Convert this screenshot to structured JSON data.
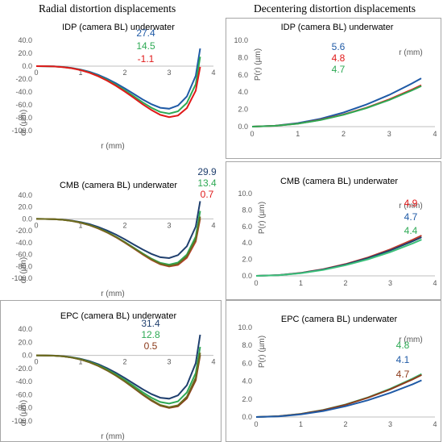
{
  "headings": {
    "left": "Radial distortion displacements",
    "right": "Decentering distortion displacements"
  },
  "chart_data": [
    {
      "id": "radial-idp",
      "type": "line",
      "title": "IDP (camera BL)  underwater",
      "xlabel": "r (mm)",
      "ylabel": "dr (µm)",
      "xlim": [
        0,
        4
      ],
      "ylim": [
        -100,
        40
      ],
      "xticks": [
        0,
        1,
        2,
        3,
        4
      ],
      "yticks": [
        "40.0",
        "20.0",
        "0.0",
        "-20.0",
        "-40.0",
        "-60.0",
        "-80.0",
        "-100.0"
      ],
      "ytick_values": [
        40,
        20,
        0,
        -20,
        -40,
        -60,
        -80,
        -100
      ],
      "grid": false,
      "x": [
        0,
        0.2,
        0.4,
        0.6,
        0.8,
        1.0,
        1.2,
        1.4,
        1.6,
        1.8,
        2.0,
        2.2,
        2.4,
        2.6,
        2.8,
        3.0,
        3.2,
        3.4,
        3.6,
        3.7
      ],
      "series": [
        {
          "color": "#1f5aa6",
          "y": [
            0,
            -0.1,
            -0.4,
            -1.2,
            -2.8,
            -5.2,
            -8.8,
            -13.5,
            -19.5,
            -26.5,
            -34.5,
            -43,
            -51.5,
            -59,
            -64.5,
            -66,
            -61,
            -47,
            -15,
            27.4
          ]
        },
        {
          "color": "#2eaa55",
          "y": [
            0,
            -0.1,
            -0.5,
            -1.4,
            -3.1,
            -5.8,
            -9.8,
            -15,
            -21.5,
            -29,
            -37.5,
            -46.5,
            -56,
            -64.5,
            -71,
            -73.5,
            -70,
            -57,
            -28,
            14.5
          ]
        },
        {
          "color": "#e01919",
          "y": [
            0,
            -0.1,
            -0.5,
            -1.5,
            -3.3,
            -6.1,
            -10.3,
            -15.8,
            -22.5,
            -30.5,
            -39.5,
            -49,
            -59,
            -68,
            -75.5,
            -79,
            -76.5,
            -65,
            -38,
            -1.1
          ]
        }
      ],
      "end_labels": [
        {
          "text": "27.4",
          "color": "#1f5aa6"
        },
        {
          "text": "14.5",
          "color": "#2eaa55"
        },
        {
          "text": "-1.1",
          "color": "#e01919"
        }
      ]
    },
    {
      "id": "decentering-idp",
      "type": "line",
      "title": "IDP (camera BL)  underwater",
      "xlabel": "r (mm)",
      "ylabel": "P(r) (µm)",
      "xlim": [
        0,
        4
      ],
      "ylim": [
        0,
        10
      ],
      "xticks": [
        0,
        1,
        2,
        3,
        4
      ],
      "yticks": [
        "10.0",
        "8.0",
        "6.0",
        "4.0",
        "2.0",
        "0.0"
      ],
      "ytick_values": [
        10,
        8,
        6,
        4,
        2,
        0
      ],
      "grid": false,
      "x": [
        0,
        0.5,
        1.0,
        1.5,
        2.0,
        2.5,
        3.0,
        3.5,
        3.7
      ],
      "series": [
        {
          "color": "#1f5aa6",
          "y": [
            0,
            0.1,
            0.41,
            0.92,
            1.64,
            2.56,
            3.68,
            5.01,
            5.6
          ]
        },
        {
          "color": "#e01919",
          "y": [
            0,
            0.09,
            0.35,
            0.79,
            1.4,
            2.19,
            3.16,
            4.3,
            4.8
          ]
        },
        {
          "color": "#2eaa55",
          "y": [
            0,
            0.09,
            0.34,
            0.77,
            1.37,
            2.15,
            3.09,
            4.21,
            4.7
          ]
        }
      ],
      "end_labels": [
        {
          "text": "5.6",
          "color": "#1f5aa6"
        },
        {
          "text": "4.8",
          "color": "#e01919"
        },
        {
          "text": "4.7",
          "color": "#2eaa55"
        }
      ]
    },
    {
      "id": "radial-cmb",
      "type": "line",
      "title": "CMB (camera BL)  underwater",
      "xlabel": "r (mm)",
      "ylabel": "dr (µm)",
      "xlim": [
        0,
        4
      ],
      "ylim": [
        -100,
        40
      ],
      "xticks": [
        0,
        1,
        2,
        3,
        4
      ],
      "yticks": [
        "40.0",
        "20.0",
        "0.0",
        "-20.0",
        "-40.0",
        "-60.0",
        "-80.0",
        "-100.0"
      ],
      "ytick_values": [
        40,
        20,
        0,
        -20,
        -40,
        -60,
        -80,
        -100
      ],
      "grid": false,
      "x": [
        0,
        0.2,
        0.4,
        0.6,
        0.8,
        1.0,
        1.2,
        1.4,
        1.6,
        1.8,
        2.0,
        2.2,
        2.4,
        2.6,
        2.8,
        3.0,
        3.2,
        3.4,
        3.6,
        3.7
      ],
      "series": [
        {
          "color": "#1f3f6e",
          "y": [
            0,
            -0.1,
            -0.4,
            -1.2,
            -2.8,
            -5.2,
            -8.8,
            -13.5,
            -19.5,
            -26.5,
            -34.5,
            -43,
            -51.5,
            -59,
            -64.5,
            -66,
            -61,
            -46,
            -13,
            29.9
          ]
        },
        {
          "color": "#2eaa55",
          "y": [
            0,
            -0.1,
            -0.5,
            -1.5,
            -3.3,
            -6.1,
            -10.2,
            -15.6,
            -22.3,
            -30.2,
            -39,
            -48.5,
            -58,
            -67,
            -74,
            -77,
            -73.5,
            -60,
            -30,
            13.4
          ]
        },
        {
          "color": "#c0392b",
          "y": [
            0,
            -0.1,
            -0.5,
            -1.5,
            -3.4,
            -6.3,
            -10.6,
            -16.1,
            -23,
            -31,
            -40,
            -49.8,
            -59.8,
            -69,
            -76.5,
            -80,
            -77.5,
            -65.5,
            -38,
            0.7
          ]
        },
        {
          "color": "#6b6b1e",
          "y": [
            0,
            -0.1,
            -0.5,
            -1.5,
            -3.3,
            -6.2,
            -10.4,
            -15.9,
            -22.7,
            -30.6,
            -39.5,
            -49.2,
            -59,
            -68,
            -75.5,
            -79,
            -76,
            -63,
            -35,
            4
          ]
        }
      ],
      "end_labels": [
        {
          "text": "29.9",
          "color": "#1f3f6e"
        },
        {
          "text": "13.4",
          "color": "#2eaa55"
        },
        {
          "text": "0.7",
          "color": "#e01919"
        }
      ]
    },
    {
      "id": "decentering-cmb",
      "type": "line",
      "title": "CMB (camera BL)  underwater",
      "xlabel": "r (mm)",
      "ylabel": "P(r) (µm)",
      "xlim": [
        0,
        4
      ],
      "ylim": [
        0,
        10
      ],
      "xticks": [
        0,
        1,
        2,
        3,
        4
      ],
      "yticks": [
        "10.0",
        "8.0",
        "6.0",
        "4.0",
        "2.0",
        "0.0"
      ],
      "ytick_values": [
        10,
        8,
        6,
        4,
        2,
        0
      ],
      "grid": false,
      "x": [
        0,
        0.5,
        1.0,
        1.5,
        2.0,
        2.5,
        3.0,
        3.5,
        3.7
      ],
      "series": [
        {
          "color": "#c0392b",
          "y": [
            0,
            0.09,
            0.36,
            0.81,
            1.43,
            2.24,
            3.22,
            4.38,
            4.9
          ]
        },
        {
          "color": "#1f3f6e",
          "y": [
            0,
            0.09,
            0.34,
            0.77,
            1.37,
            2.15,
            3.09,
            4.21,
            4.7
          ]
        },
        {
          "color": "#3cc07a",
          "y": [
            0,
            0.08,
            0.32,
            0.72,
            1.29,
            2.01,
            2.89,
            3.94,
            4.4
          ]
        }
      ],
      "end_labels": [
        {
          "text": "4.9",
          "color": "#e01919"
        },
        {
          "text": "4.7",
          "color": "#1f5aa6"
        },
        {
          "text": "4.4",
          "color": "#2eaa55"
        }
      ]
    },
    {
      "id": "radial-epc",
      "type": "line",
      "title": "EPC (camera BL)  underwater",
      "xlabel": "r (mm)",
      "ylabel": "dr (µm)",
      "xlim": [
        0,
        4
      ],
      "ylim": [
        -100,
        40
      ],
      "xticks": [
        0,
        1,
        2,
        3,
        4
      ],
      "yticks": [
        "40.0",
        "20.0",
        "0.0",
        "-20.0",
        "-40.0",
        "-60.0",
        "-80.0",
        "-100.0"
      ],
      "ytick_values": [
        40,
        20,
        0,
        -20,
        -40,
        -60,
        -80,
        -100
      ],
      "grid": false,
      "x": [
        0,
        0.2,
        0.4,
        0.6,
        0.8,
        1.0,
        1.2,
        1.4,
        1.6,
        1.8,
        2.0,
        2.2,
        2.4,
        2.6,
        2.8,
        3.0,
        3.2,
        3.4,
        3.6,
        3.7
      ],
      "series": [
        {
          "color": "#1f3f6e",
          "y": [
            0,
            -0.1,
            -0.4,
            -1.2,
            -2.8,
            -5.2,
            -8.8,
            -13.5,
            -19.5,
            -26.5,
            -34.5,
            -43,
            -51.5,
            -59,
            -64.5,
            -66,
            -61,
            -45.5,
            -12,
            31.4
          ]
        },
        {
          "color": "#2eaa55",
          "y": [
            0,
            -0.1,
            -0.5,
            -1.4,
            -3.1,
            -5.8,
            -9.8,
            -15,
            -21.5,
            -29,
            -37.5,
            -46.5,
            -56,
            -64.5,
            -71,
            -73.5,
            -70,
            -56.5,
            -27,
            12.8
          ]
        },
        {
          "color": "#8b3a1a",
          "y": [
            0,
            -0.1,
            -0.5,
            -1.5,
            -3.4,
            -6.3,
            -10.6,
            -16.1,
            -23,
            -31,
            -40,
            -49.8,
            -59.8,
            -69,
            -76.5,
            -80,
            -77.5,
            -65.5,
            -38,
            0.5
          ]
        },
        {
          "color": "#6b6b1e",
          "y": [
            0,
            -0.1,
            -0.5,
            -1.5,
            -3.3,
            -6.2,
            -10.4,
            -15.9,
            -22.7,
            -30.6,
            -39.5,
            -49.2,
            -59,
            -68,
            -75.5,
            -79,
            -76,
            -63,
            -34,
            4
          ]
        }
      ],
      "end_labels": [
        {
          "text": "31.4",
          "color": "#1f3f6e"
        },
        {
          "text": "12.8",
          "color": "#2eaa55"
        },
        {
          "text": "0.5",
          "color": "#8b3a1a"
        }
      ]
    },
    {
      "id": "decentering-epc",
      "type": "line",
      "title": "EPC (camera BL)  underwater",
      "xlabel": "r (mm)",
      "ylabel": "P(r) (µm)",
      "xlim": [
        0,
        4
      ],
      "ylim": [
        0,
        10
      ],
      "xticks": [
        0,
        1,
        2,
        3,
        4
      ],
      "yticks": [
        "10.0",
        "8.0",
        "6.0",
        "4.0",
        "2.0",
        "0.0"
      ],
      "ytick_values": [
        10,
        8,
        6,
        4,
        2,
        0
      ],
      "grid": false,
      "x": [
        0,
        0.5,
        1.0,
        1.5,
        2.0,
        2.5,
        3.0,
        3.5,
        3.7
      ],
      "series": [
        {
          "color": "#3cc07a",
          "y": [
            0,
            0.09,
            0.35,
            0.79,
            1.4,
            2.19,
            3.16,
            4.3,
            4.8
          ]
        },
        {
          "color": "#8b3a1a",
          "y": [
            0,
            0.09,
            0.34,
            0.77,
            1.37,
            2.15,
            3.09,
            4.21,
            4.7
          ]
        },
        {
          "color": "#1f5aa6",
          "y": [
            0,
            0.07,
            0.3,
            0.67,
            1.2,
            1.87,
            2.69,
            3.66,
            4.1
          ]
        }
      ],
      "end_labels": [
        {
          "text": "4.8",
          "color": "#2eaa55"
        },
        {
          "text": "4.1",
          "color": "#1f5aa6"
        },
        {
          "text": "4.7",
          "color": "#8b3a1a"
        }
      ]
    }
  ]
}
